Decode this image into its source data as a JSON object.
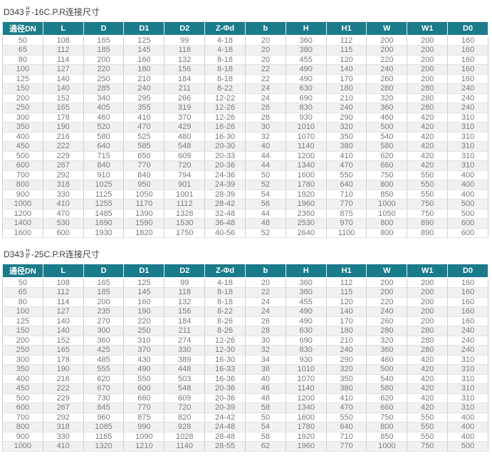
{
  "colors": {
    "header_bg": "#1a7b8b",
    "header_text": "#ffffff",
    "row_alt": "#f1f1f1",
    "border": "#cfcfcf",
    "text": "#7a7a7a",
    "title": "#3c3c3c"
  },
  "tables": [
    {
      "title": {
        "model": "D343",
        "frac_top": "H",
        "frac_bottom": "F",
        "suffix": "-16C.P.R连接尺寸"
      },
      "columns": [
        "通径DN",
        "L",
        "D",
        "D1",
        "D2",
        "Z-Φd",
        "b",
        "H",
        "H1",
        "W",
        "W1",
        "D0"
      ],
      "rows": [
        [
          "50",
          "108",
          "165",
          "125",
          "99",
          "4-18",
          "20",
          "360",
          "112",
          "200",
          "200",
          "160"
        ],
        [
          "65",
          "112",
          "185",
          "145",
          "118",
          "4-18",
          "20",
          "380",
          "115",
          "200",
          "200",
          "160"
        ],
        [
          "80",
          "114",
          "200",
          "160",
          "132",
          "8-18",
          "20",
          "455",
          "120",
          "220",
          "200",
          "160"
        ],
        [
          "100",
          "127",
          "220",
          "180",
          "156",
          "8-18",
          "22",
          "490",
          "140",
          "240",
          "200",
          "160"
        ],
        [
          "125",
          "140",
          "250",
          "210",
          "184",
          "8-18",
          "22",
          "490",
          "170",
          "260",
          "200",
          "160"
        ],
        [
          "150",
          "140",
          "285",
          "240",
          "211",
          "8-22",
          "24",
          "630",
          "180",
          "280",
          "280",
          "240"
        ],
        [
          "200",
          "152",
          "340",
          "295",
          "266",
          "12-22",
          "24",
          "690",
          "210",
          "320",
          "280",
          "240"
        ],
        [
          "250",
          "165",
          "405",
          "355",
          "319",
          "12-26",
          "26",
          "830",
          "240",
          "360",
          "280",
          "240"
        ],
        [
          "300",
          "178",
          "460",
          "410",
          "370",
          "12-26",
          "28",
          "930",
          "290",
          "460",
          "420",
          "310"
        ],
        [
          "350",
          "190",
          "520",
          "470",
          "429",
          "16-26",
          "30",
          "1010",
          "320",
          "500",
          "420",
          "310"
        ],
        [
          "400",
          "216",
          "580",
          "525",
          "480",
          "16-30",
          "32",
          "1070",
          "350",
          "540",
          "420",
          "310"
        ],
        [
          "450",
          "222",
          "640",
          "585",
          "548",
          "20-30",
          "40",
          "1140",
          "380",
          "580",
          "420",
          "310"
        ],
        [
          "500",
          "229",
          "715",
          "650",
          "609",
          "20-33",
          "44",
          "1200",
          "410",
          "620",
          "420",
          "310"
        ],
        [
          "600",
          "267",
          "840",
          "770",
          "720",
          "20-36",
          "44",
          "1340",
          "470",
          "660",
          "420",
          "310"
        ],
        [
          "700",
          "292",
          "910",
          "840",
          "794",
          "24-36",
          "50",
          "1600",
          "550",
          "750",
          "550",
          "400"
        ],
        [
          "800",
          "318",
          "1025",
          "950",
          "901",
          "24-39",
          "52",
          "1780",
          "640",
          "800",
          "550",
          "400"
        ],
        [
          "900",
          "330",
          "1125",
          "1050",
          "1001",
          "28-39",
          "54",
          "1920",
          "710",
          "850",
          "550",
          "400"
        ],
        [
          "1000",
          "410",
          "1255",
          "1170",
          "1112",
          "28-42",
          "56",
          "1960",
          "770",
          "1000",
          "750",
          "500"
        ],
        [
          "1200",
          "470",
          "1485",
          "1390",
          "1328",
          "32-48",
          "44",
          "2360",
          "875",
          "1050",
          "750",
          "500"
        ],
        [
          "1400",
          "530",
          "1690",
          "1590",
          "1530",
          "36-48",
          "48",
          "2530",
          "970",
          "800",
          "890",
          "600"
        ],
        [
          "1600",
          "600",
          "1930",
          "1820",
          "1750",
          "40-56",
          "52",
          "2640",
          "1100",
          "800",
          "890",
          "600"
        ]
      ]
    },
    {
      "title": {
        "model": "D343",
        "frac_top": "H",
        "frac_bottom": "F",
        "suffix": "-25C.P.R连接尺寸"
      },
      "columns": [
        "通径DN",
        "L",
        "D",
        "D1",
        "D2",
        "Z-Φd",
        "b",
        "H",
        "H1",
        "W",
        "W1",
        "D0"
      ],
      "rows": [
        [
          "50",
          "108",
          "165",
          "125",
          "99",
          "4-18",
          "20",
          "360",
          "112",
          "200",
          "200",
          "160"
        ],
        [
          "65",
          "112",
          "185",
          "145",
          "118",
          "8-18",
          "22",
          "380",
          "115",
          "200",
          "200",
          "160"
        ],
        [
          "80",
          "114",
          "200",
          "160",
          "132",
          "8-18",
          "24",
          "455",
          "120",
          "220",
          "200",
          "160"
        ],
        [
          "100",
          "127",
          "235",
          "190",
          "156",
          "8-22",
          "24",
          "490",
          "140",
          "240",
          "200",
          "160"
        ],
        [
          "125",
          "140",
          "270",
          "220",
          "184",
          "8-26",
          "26",
          "490",
          "170",
          "260",
          "200",
          "160"
        ],
        [
          "150",
          "140",
          "300",
          "250",
          "211",
          "8-26",
          "28",
          "630",
          "180",
          "280",
          "280",
          "240"
        ],
        [
          "200",
          "152",
          "360",
          "310",
          "274",
          "12-26",
          "30",
          "690",
          "210",
          "320",
          "280",
          "240"
        ],
        [
          "250",
          "165",
          "425",
          "370",
          "330",
          "12-30",
          "32",
          "830",
          "240",
          "360",
          "280",
          "240"
        ],
        [
          "300",
          "178",
          "485",
          "430",
          "389",
          "16-30",
          "34",
          "930",
          "290",
          "460",
          "420",
          "310"
        ],
        [
          "350",
          "190",
          "555",
          "490",
          "448",
          "16-33",
          "38",
          "1010",
          "320",
          "500",
          "420",
          "310"
        ],
        [
          "400",
          "216",
          "620",
          "550",
          "503",
          "16-36",
          "40",
          "1070",
          "350",
          "540",
          "420",
          "310"
        ],
        [
          "450",
          "222",
          "670",
          "600",
          "548",
          "20-36",
          "46",
          "1140",
          "380",
          "580",
          "420",
          "310"
        ],
        [
          "500",
          "229",
          "730",
          "660",
          "609",
          "20-36",
          "48",
          "1200",
          "410",
          "620",
          "420",
          "310"
        ],
        [
          "600",
          "267",
          "845",
          "770",
          "720",
          "20-39",
          "58",
          "1340",
          "470",
          "660",
          "420",
          "310"
        ],
        [
          "700",
          "292",
          "960",
          "875",
          "820",
          "24-42",
          "50",
          "1600",
          "550",
          "750",
          "550",
          "400"
        ],
        [
          "800",
          "318",
          "1085",
          "990",
          "928",
          "24-48",
          "54",
          "1780",
          "640",
          "800",
          "550",
          "400"
        ],
        [
          "900",
          "330",
          "1185",
          "1090",
          "1028",
          "28-48",
          "58",
          "1920",
          "710",
          "850",
          "550",
          "400"
        ],
        [
          "1000",
          "410",
          "1320",
          "1210",
          "1140",
          "28-55",
          "62",
          "1960",
          "770",
          "1000",
          "750",
          "500"
        ]
      ]
    }
  ]
}
